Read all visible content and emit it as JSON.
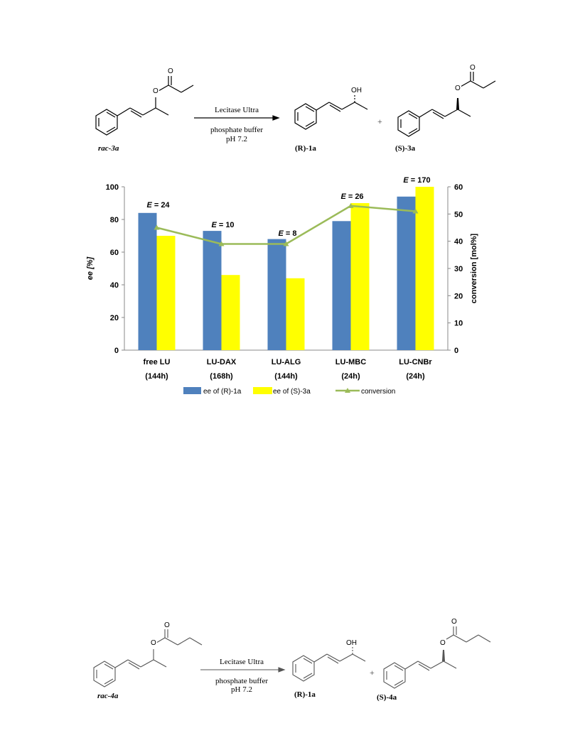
{
  "scheme1": {
    "reactant_label": "rac-3a",
    "reagent_top": "Lecitase Ultra",
    "reagent_bottom_1": "phosphate buffer",
    "reagent_bottom_2": "pH 7.2",
    "product1_label": "(R)-1a",
    "plus": "+",
    "product2_label": "(S)-3a",
    "atom_O": "O",
    "atom_OH": "OH"
  },
  "scheme2": {
    "reactant_label": "rac-4a",
    "reagent_top": "Lecitase Ultra",
    "reagent_bottom_1": "phosphate buffer",
    "reagent_bottom_2": "pH 7.2",
    "product1_label": "(R)-1a",
    "plus": "+",
    "product2_label": "(S)-4a",
    "atom_O": "O",
    "atom_OH": "OH"
  },
  "chart_data": {
    "type": "bar",
    "categories": [
      "free LU",
      "LU-DAX",
      "LU-ALG",
      "LU-MBC",
      "LU-CNBr"
    ],
    "category_sublabels": [
      "(144h)",
      "(168h)",
      "(144h)",
      "(24h)",
      "(24h)"
    ],
    "series": [
      {
        "name": "ee of (R)-1a",
        "type": "bar",
        "axis": "left",
        "color": "#4f81bd",
        "values": [
          84,
          73,
          68,
          79,
          94
        ]
      },
      {
        "name": "ee of (S)-3a",
        "type": "bar",
        "axis": "left",
        "color": "#ffff00",
        "values": [
          70,
          46,
          44,
          90,
          100
        ]
      },
      {
        "name": "conversion",
        "type": "line",
        "axis": "right",
        "color": "#9bbb59",
        "values": [
          45,
          39,
          39,
          53,
          51
        ]
      }
    ],
    "annotations": [
      "E = 24",
      "E = 10",
      "E = 8",
      "E = 26",
      "E = 170"
    ],
    "ylabel": "ee [%]",
    "y2label": "conversion [mol%]",
    "ylim": [
      0,
      100
    ],
    "y2lim": [
      0,
      60
    ],
    "yticks": [
      0,
      20,
      40,
      60,
      80,
      100
    ],
    "y2ticks": [
      0,
      10,
      20,
      30,
      40,
      50,
      60
    ],
    "legend_position": "bottom",
    "grid": false
  }
}
